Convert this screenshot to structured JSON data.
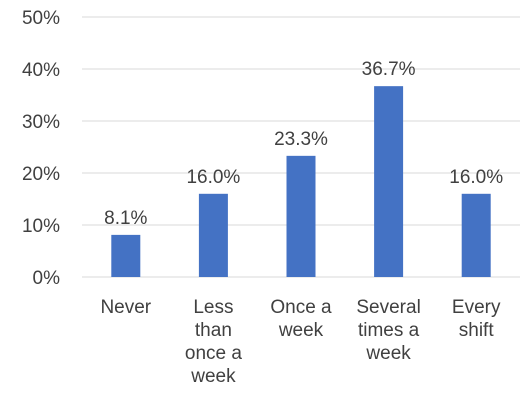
{
  "chart_data": {
    "type": "bar",
    "categories": [
      [
        "Never"
      ],
      [
        "Less",
        "than",
        "once a",
        "week"
      ],
      [
        "Once a",
        "week"
      ],
      [
        "Several",
        "times a",
        "week"
      ],
      [
        "Every",
        "shift"
      ]
    ],
    "values": [
      8.1,
      16.0,
      23.3,
      36.7,
      16.0
    ],
    "data_labels": [
      "8.1%",
      "16.0%",
      "23.3%",
      "36.7%",
      "16.0%"
    ],
    "y_ticks": [
      "0%",
      "10%",
      "20%",
      "30%",
      "40%",
      "50%"
    ],
    "ylim": [
      0,
      50
    ],
    "grid": true,
    "bar_color": "#4472C4",
    "title": "",
    "xlabel": "",
    "ylabel": ""
  }
}
